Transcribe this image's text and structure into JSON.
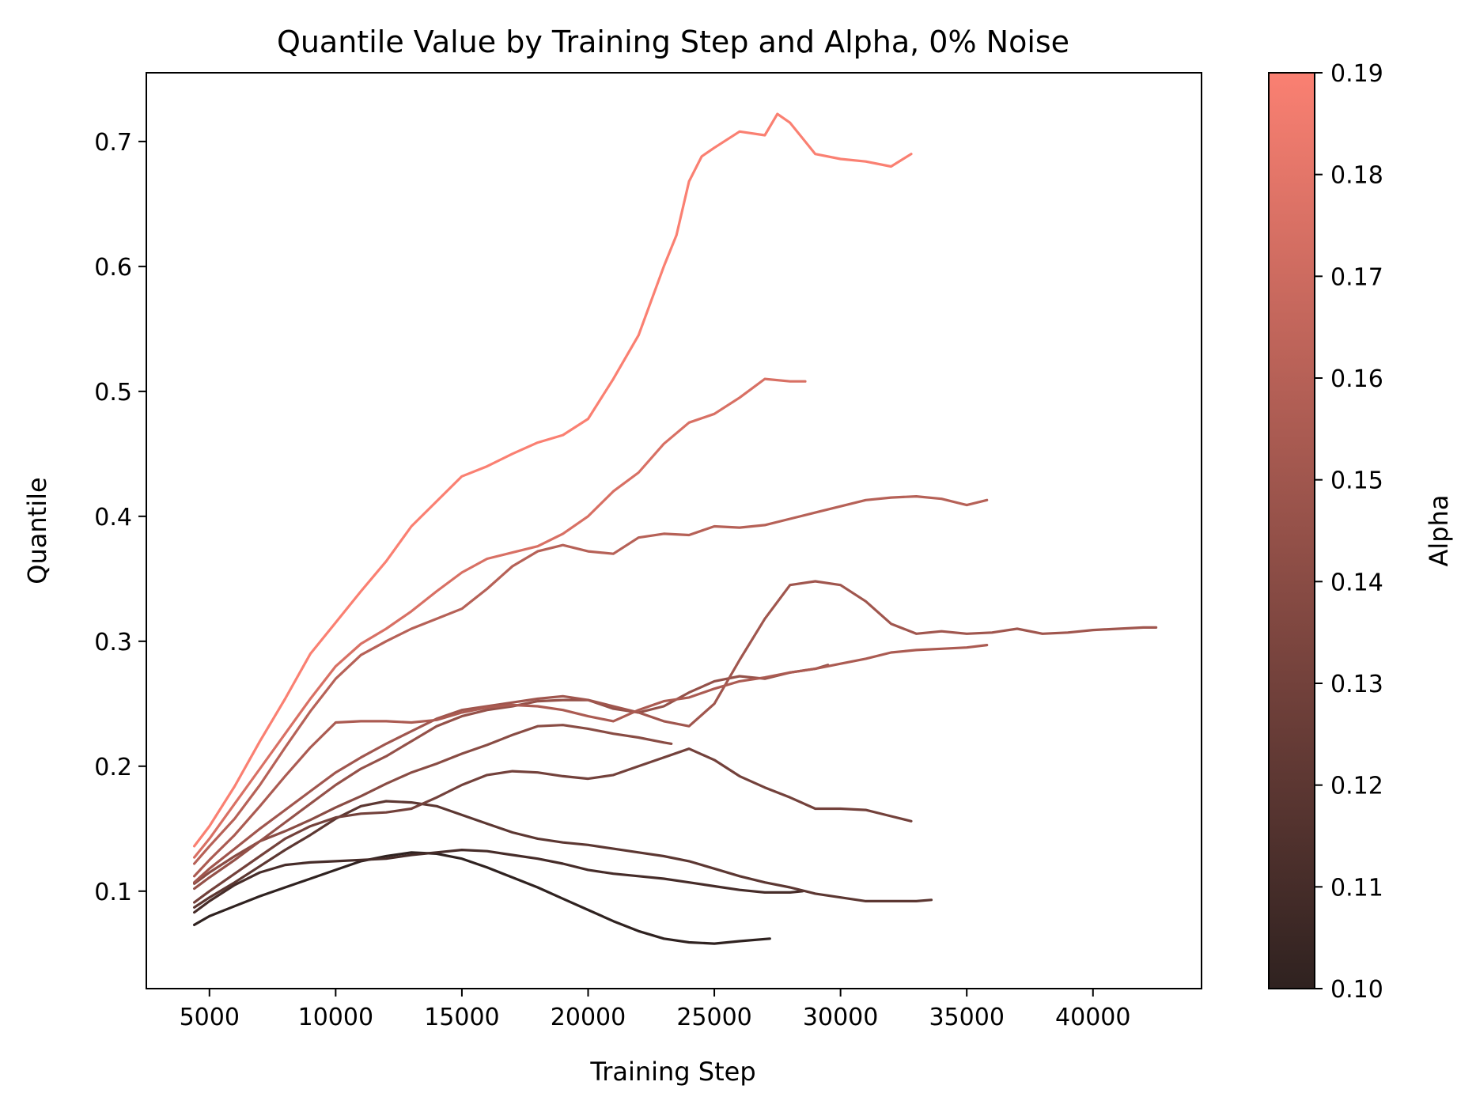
{
  "chart_data": {
    "type": "line",
    "title": "Quantile Value by Training Step and Alpha, 0% Noise",
    "xlabel": "Training Step",
    "ylabel": "Quantile",
    "xlim": [
      2500,
      44300
    ],
    "ylim": [
      0.022,
      0.755
    ],
    "xticks": [
      5000,
      10000,
      15000,
      20000,
      25000,
      30000,
      35000,
      40000
    ],
    "yticks": [
      0.1,
      0.2,
      0.3,
      0.4,
      0.5,
      0.6,
      0.7
    ],
    "grid": false,
    "legend": "none",
    "colorbar": {
      "label": "Alpha",
      "min": 0.1,
      "max": 0.19,
      "ticks": [
        0.1,
        0.11,
        0.12,
        0.13,
        0.14,
        0.15,
        0.16,
        0.17,
        0.18,
        0.19
      ],
      "color_low": "#2f2220",
      "color_high": "#fa8072"
    },
    "series": [
      {
        "alpha": 0.1,
        "x": [
          4400,
          5000,
          6000,
          7000,
          8000,
          9000,
          10000,
          11000,
          12000,
          13000,
          14000,
          15000,
          16000,
          17000,
          18000,
          19000,
          20000,
          21000,
          22000,
          23000,
          24000,
          25000,
          26000,
          27200
        ],
        "y": [
          0.073,
          0.08,
          0.088,
          0.096,
          0.103,
          0.11,
          0.117,
          0.124,
          0.128,
          0.131,
          0.13,
          0.126,
          0.119,
          0.111,
          0.103,
          0.094,
          0.085,
          0.076,
          0.068,
          0.062,
          0.059,
          0.058,
          0.06,
          0.062
        ]
      },
      {
        "alpha": 0.11,
        "x": [
          4400,
          5000,
          6000,
          7000,
          8000,
          9000,
          10000,
          11000,
          12000,
          13000,
          14000,
          15000,
          16000,
          17000,
          18000,
          19000,
          20000,
          21000,
          22000,
          23000,
          24000,
          25000,
          26000,
          27000,
          28000,
          28500
        ],
        "y": [
          0.083,
          0.092,
          0.105,
          0.115,
          0.121,
          0.123,
          0.124,
          0.125,
          0.126,
          0.129,
          0.131,
          0.133,
          0.132,
          0.129,
          0.126,
          0.122,
          0.117,
          0.114,
          0.112,
          0.11,
          0.107,
          0.104,
          0.101,
          0.099,
          0.099,
          0.1
        ]
      },
      {
        "alpha": 0.12,
        "x": [
          4400,
          5000,
          6000,
          7000,
          8000,
          9000,
          10000,
          11000,
          12000,
          13000,
          14000,
          15000,
          16000,
          17000,
          18000,
          19000,
          20000,
          21000,
          22000,
          23000,
          24000,
          25000,
          26000,
          27000,
          28000,
          29000,
          30000,
          31000,
          32000,
          33000,
          33600
        ],
        "y": [
          0.087,
          0.095,
          0.107,
          0.12,
          0.133,
          0.145,
          0.158,
          0.168,
          0.172,
          0.171,
          0.168,
          0.161,
          0.154,
          0.147,
          0.142,
          0.139,
          0.137,
          0.134,
          0.131,
          0.128,
          0.124,
          0.118,
          0.112,
          0.107,
          0.103,
          0.098,
          0.095,
          0.092,
          0.092,
          0.092,
          0.093
        ]
      },
      {
        "alpha": 0.13,
        "x": [
          4400,
          5000,
          6000,
          7000,
          8000,
          9000,
          10000,
          11000,
          12000,
          13000,
          14000,
          15000,
          16000,
          17000,
          18000,
          19000,
          20000,
          21000,
          22000,
          23000,
          24000,
          25000,
          26000,
          27000,
          28000,
          29000,
          30000,
          31000,
          32000,
          32800
        ],
        "y": [
          0.091,
          0.1,
          0.114,
          0.128,
          0.142,
          0.152,
          0.159,
          0.162,
          0.163,
          0.166,
          0.175,
          0.185,
          0.193,
          0.196,
          0.195,
          0.192,
          0.19,
          0.193,
          0.2,
          0.207,
          0.214,
          0.205,
          0.192,
          0.183,
          0.175,
          0.166,
          0.166,
          0.165,
          0.16,
          0.156
        ]
      },
      {
        "alpha": 0.14,
        "x": [
          4400,
          5000,
          6000,
          7000,
          8000,
          9000,
          10000,
          11000,
          12000,
          13000,
          14000,
          15000,
          16000,
          17000,
          18000,
          19000,
          20000,
          21000,
          22000,
          23000,
          23300
        ],
        "y": [
          0.106,
          0.115,
          0.128,
          0.14,
          0.148,
          0.157,
          0.167,
          0.176,
          0.186,
          0.195,
          0.202,
          0.21,
          0.217,
          0.225,
          0.232,
          0.233,
          0.23,
          0.226,
          0.223,
          0.219,
          0.218
        ]
      },
      {
        "alpha": 0.145,
        "x": [
          4400,
          5000,
          6000,
          7000,
          8000,
          9000,
          10000,
          11000,
          12000,
          13000,
          14000,
          15000,
          16000,
          17000,
          18000,
          19000,
          20000,
          21000,
          22000,
          23000,
          24000,
          25000,
          26000,
          27000,
          28000,
          29000,
          29500
        ],
        "y": [
          0.102,
          0.111,
          0.125,
          0.14,
          0.155,
          0.17,
          0.185,
          0.198,
          0.208,
          0.22,
          0.232,
          0.24,
          0.245,
          0.248,
          0.252,
          0.253,
          0.253,
          0.246,
          0.243,
          0.248,
          0.259,
          0.268,
          0.272,
          0.27,
          0.275,
          0.278,
          0.281
        ]
      },
      {
        "alpha": 0.15,
        "x": [
          4400,
          5000,
          6000,
          7000,
          8000,
          9000,
          10000,
          11000,
          12000,
          13000,
          14000,
          15000,
          16000,
          17000,
          18000,
          19000,
          20000,
          21000,
          22000,
          23000,
          24000,
          25000,
          26000,
          27000,
          28000,
          29000,
          30000,
          31000,
          32000,
          33000,
          34000,
          35000,
          36000,
          37000,
          38000,
          39000,
          40000,
          41000,
          42000,
          42500
        ],
        "y": [
          0.107,
          0.118,
          0.134,
          0.15,
          0.165,
          0.18,
          0.195,
          0.207,
          0.218,
          0.228,
          0.238,
          0.245,
          0.248,
          0.251,
          0.254,
          0.256,
          0.253,
          0.248,
          0.243,
          0.236,
          0.232,
          0.25,
          0.285,
          0.318,
          0.345,
          0.348,
          0.345,
          0.332,
          0.314,
          0.306,
          0.308,
          0.306,
          0.307,
          0.31,
          0.306,
          0.307,
          0.309,
          0.31,
          0.311,
          0.311
        ]
      },
      {
        "alpha": 0.155,
        "x": [
          4400,
          5000,
          6000,
          7000,
          8000,
          9000,
          10000,
          11000,
          12000,
          13000,
          14000,
          15000,
          16000,
          17000,
          18000,
          19000,
          20000,
          21000,
          22000,
          23000,
          24000,
          25000,
          26000,
          27000,
          28000,
          29000,
          30000,
          31000,
          32000,
          33000,
          34000,
          35000,
          35800
        ],
        "y": [
          0.112,
          0.125,
          0.145,
          0.168,
          0.192,
          0.215,
          0.235,
          0.236,
          0.236,
          0.235,
          0.237,
          0.243,
          0.247,
          0.249,
          0.248,
          0.245,
          0.24,
          0.236,
          0.245,
          0.252,
          0.255,
          0.262,
          0.268,
          0.271,
          0.275,
          0.278,
          0.282,
          0.286,
          0.291,
          0.293,
          0.294,
          0.295,
          0.297
        ]
      },
      {
        "alpha": 0.16,
        "x": [
          4400,
          5000,
          6000,
          7000,
          8000,
          9000,
          10000,
          11000,
          12000,
          13000,
          14000,
          15000,
          16000,
          17000,
          18000,
          19000,
          20000,
          21000,
          22000,
          23000,
          24000,
          25000,
          26000,
          27000,
          28000,
          29000,
          30000,
          31000,
          32000,
          33000,
          34000,
          35000,
          35800
        ],
        "y": [
          0.122,
          0.136,
          0.158,
          0.185,
          0.215,
          0.244,
          0.27,
          0.289,
          0.3,
          0.31,
          0.318,
          0.326,
          0.342,
          0.36,
          0.372,
          0.377,
          0.372,
          0.37,
          0.383,
          0.386,
          0.385,
          0.392,
          0.391,
          0.393,
          0.398,
          0.403,
          0.408,
          0.413,
          0.415,
          0.416,
          0.414,
          0.409,
          0.413
        ]
      },
      {
        "alpha": 0.175,
        "x": [
          4400,
          5000,
          6000,
          7000,
          8000,
          9000,
          10000,
          11000,
          12000,
          13000,
          14000,
          15000,
          16000,
          17000,
          18000,
          19000,
          20000,
          21000,
          22000,
          23000,
          24000,
          25000,
          26000,
          27000,
          28000,
          28600
        ],
        "y": [
          0.127,
          0.142,
          0.17,
          0.198,
          0.226,
          0.254,
          0.28,
          0.298,
          0.31,
          0.324,
          0.34,
          0.355,
          0.366,
          0.371,
          0.376,
          0.386,
          0.4,
          0.42,
          0.435,
          0.458,
          0.475,
          0.482,
          0.495,
          0.51,
          0.508,
          0.508
        ]
      },
      {
        "alpha": 0.19,
        "x": [
          4400,
          5000,
          6000,
          7000,
          8000,
          9000,
          10000,
          11000,
          12000,
          13000,
          14000,
          15000,
          16000,
          17000,
          18000,
          19000,
          20000,
          21000,
          22000,
          23000,
          23500,
          24000,
          24500,
          25000,
          26000,
          27000,
          27500,
          28000,
          29000,
          30000,
          31000,
          32000,
          32800
        ],
        "y": [
          0.136,
          0.152,
          0.184,
          0.22,
          0.254,
          0.29,
          0.315,
          0.34,
          0.364,
          0.392,
          0.412,
          0.432,
          0.44,
          0.45,
          0.459,
          0.465,
          0.478,
          0.51,
          0.545,
          0.6,
          0.625,
          0.668,
          0.688,
          0.695,
          0.708,
          0.705,
          0.722,
          0.715,
          0.69,
          0.686,
          0.684,
          0.68,
          0.69
        ]
      }
    ]
  }
}
